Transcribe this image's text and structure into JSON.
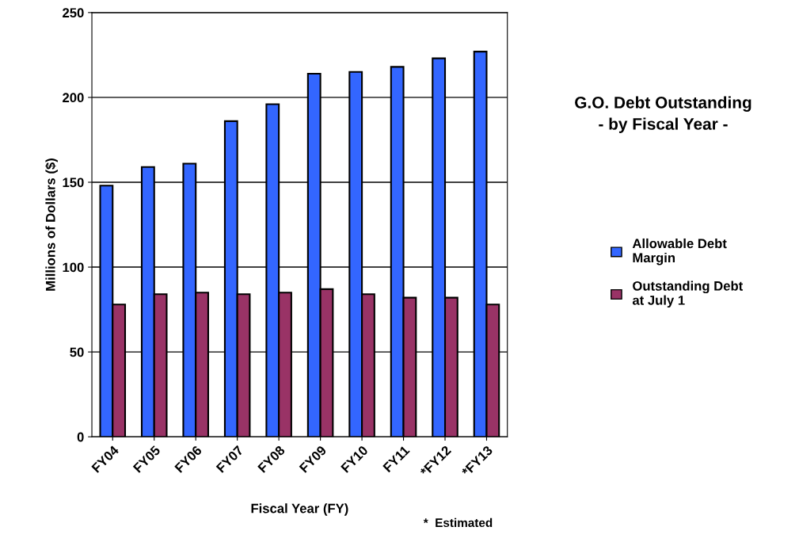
{
  "chart_data": {
    "type": "bar",
    "title": "G.O. Debt Outstanding\n- by Fiscal Year -",
    "xlabel": "Fiscal Year (FY)",
    "ylabel": "Millions of Dollars ($)",
    "categories": [
      "FY04",
      "FY05",
      "FY06",
      "FY07",
      "FY08",
      "FY09",
      "FY10",
      "FY11",
      "*FY12",
      "*FY13"
    ],
    "series": [
      {
        "name": "Allowable Debt\nMargin",
        "color": "#3366ff",
        "values": [
          148,
          159,
          161,
          186,
          196,
          214,
          215,
          218,
          223,
          227
        ]
      },
      {
        "name": "Outstanding Debt\nat July 1",
        "color": "#993366",
        "values": [
          78,
          84,
          85,
          84,
          85,
          87,
          84,
          82,
          82,
          78
        ]
      }
    ],
    "ylim": [
      0,
      250
    ],
    "yticks": [
      0,
      50,
      100,
      150,
      200,
      250
    ],
    "grid": "y",
    "legend": "right",
    "annotations": [
      "*  Estimated"
    ]
  }
}
